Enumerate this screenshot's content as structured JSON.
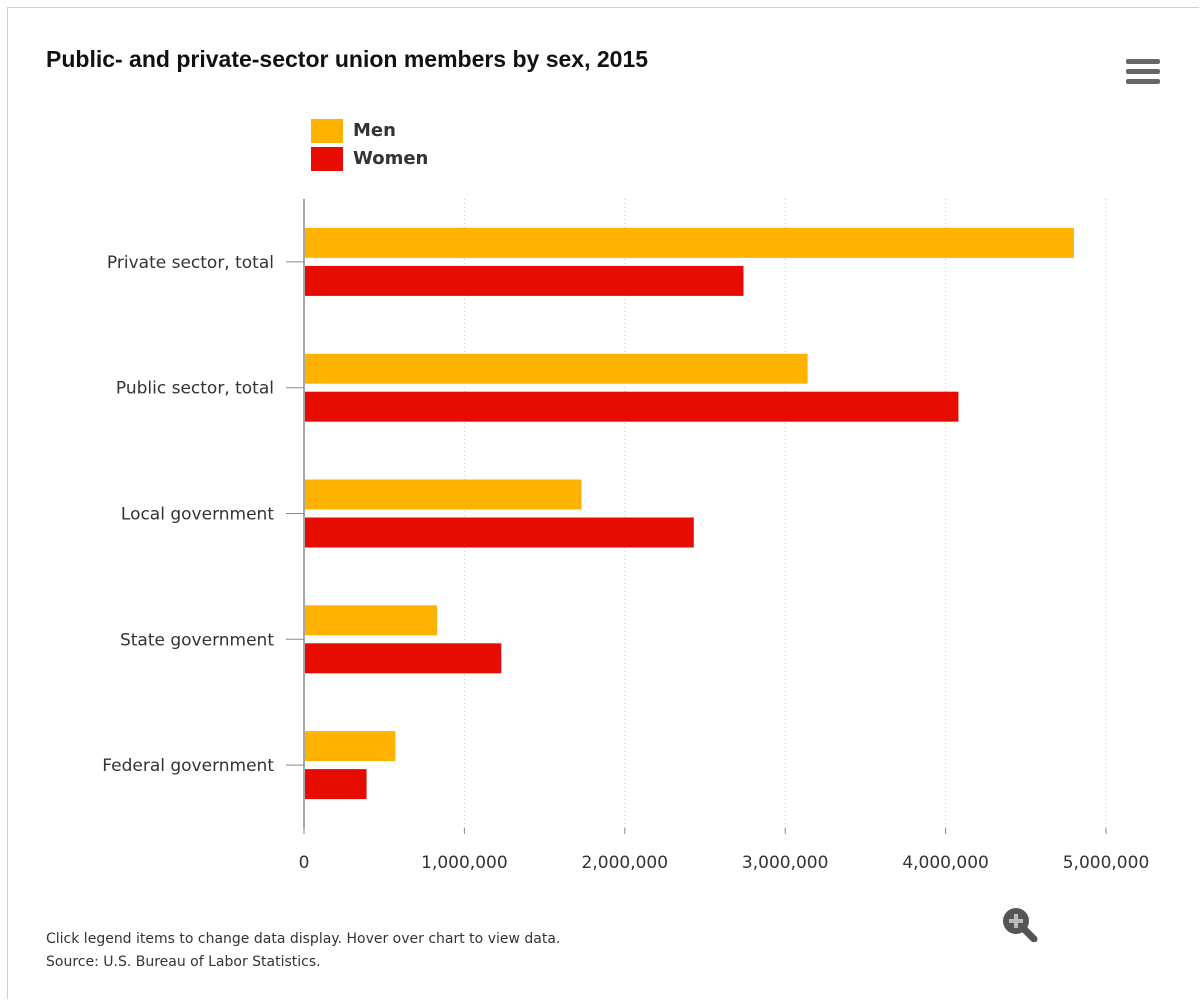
{
  "chart_data": {
    "type": "bar",
    "orientation": "horizontal",
    "title": "Public- and private-sector union members by sex, 2015",
    "categories": [
      "Private sector, total",
      "Public sector, total",
      "Local government",
      "State government",
      "Federal government"
    ],
    "series": [
      {
        "name": "Men",
        "color": "#FFB300",
        "values": [
          4800000,
          3140000,
          1730000,
          830000,
          570000
        ]
      },
      {
        "name": "Women",
        "color": "#E60D00",
        "values": [
          2740000,
          4080000,
          2430000,
          1230000,
          390000
        ]
      }
    ],
    "xlim": [
      0,
      5000000
    ],
    "xticks": [
      0,
      1000000,
      2000000,
      3000000,
      4000000,
      5000000
    ],
    "xtick_labels": [
      "0",
      "1,000,000",
      "2,000,000",
      "3,000,000",
      "4,000,000",
      "5,000,000"
    ],
    "grid": "vertical dotted",
    "legend_position": "top-left"
  },
  "footer": {
    "line1": "Click legend items to change data display. Hover over chart to view data.",
    "line2": "Source: U.S. Bureau of Labor Statistics."
  },
  "icons": {
    "menu": "hamburger-menu-icon",
    "zoom": "zoom-in-icon"
  }
}
